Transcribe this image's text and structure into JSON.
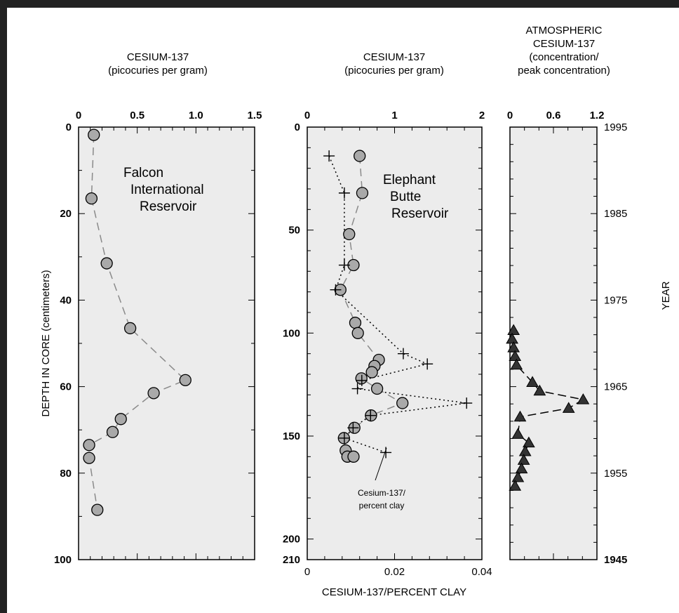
{
  "chart_data": [
    {
      "type": "scatter",
      "title": "CESIUM-137",
      "subtitle": "(picocuries per gram)",
      "ylabel": "DEPTH IN CORE (centimeters)",
      "xlim": [
        0,
        1.5
      ],
      "ylim": [
        0,
        100
      ],
      "x_ticks": [
        "0",
        "0.5",
        "1.0",
        "1.5"
      ],
      "y_ticks": [
        "0",
        "20",
        "40",
        "60",
        "80",
        "100"
      ],
      "annotation": [
        "Falcon",
        "International",
        "Reservoir"
      ],
      "series": [
        {
          "x": [
            0.13,
            0.11,
            0.24,
            0.44,
            0.91,
            0.64,
            0.36,
            0.29,
            0.09,
            0.09,
            0.16
          ],
          "y": [
            1.8,
            16.5,
            31.5,
            46.5,
            58.5,
            61.5,
            67.5,
            70.5,
            73.5,
            76.5,
            88.5
          ]
        }
      ]
    },
    {
      "type": "scatter",
      "title": "CESIUM-137",
      "subtitle": "(picocuries per gram)",
      "xlabel": "CESIUM-137/PERCENT CLAY",
      "xlim_top": [
        0,
        2
      ],
      "xlim_bottom": [
        0,
        0.04
      ],
      "ylim": [
        0,
        210
      ],
      "x_ticks_top": [
        "0",
        "1",
        "2"
      ],
      "x_ticks_bottom": [
        "0",
        "0.02",
        "0.04"
      ],
      "y_ticks": [
        "0",
        "50",
        "100",
        "150",
        "200",
        "210"
      ],
      "annotation": [
        "Elephant",
        "Butte",
        "Reservoir"
      ],
      "callout": [
        "Cesium-137/",
        "percent clay"
      ],
      "series": [
        {
          "x": [
            0.6,
            0.63,
            0.48,
            0.53,
            0.38,
            0.55,
            0.58,
            0.82,
            0.77,
            0.74,
            0.62,
            0.8,
            1.09,
            0.73,
            0.54,
            0.42,
            0.44,
            0.46,
            0.53
          ],
          "y": [
            14,
            32,
            52,
            67,
            79,
            95,
            100,
            113,
            116,
            119,
            122,
            127,
            134,
            140,
            146,
            151,
            157,
            160,
            160
          ]
        },
        {
          "x": [
            0.005,
            0.0085,
            0.0085,
            0.0065,
            0.022,
            0.0275,
            0.0125,
            0.0115,
            0.0365,
            0.0145,
            0.0105,
            0.0085,
            0.018
          ],
          "y": [
            14,
            32,
            67,
            79,
            110,
            115,
            123,
            127,
            134,
            140,
            146,
            151,
            158
          ]
        }
      ]
    },
    {
      "type": "scatter",
      "title": [
        "ATMOSPHERIC",
        "CESIUM-137",
        "(concentration/",
        "peak concentration)"
      ],
      "ylabel": "YEAR",
      "xlim": [
        0,
        1.2
      ],
      "ylim": [
        1945,
        1995
      ],
      "x_ticks": [
        "0",
        "0.6",
        "1.2"
      ],
      "y_ticks": [
        "1995",
        "1985",
        "1975",
        "1965",
        "1955",
        "1945"
      ],
      "series": [
        {
          "x": [
            0.05,
            0.03,
            0.05,
            0.07,
            0.09,
            0.31,
            0.41,
            1.01,
            0.81,
            0.14,
            0.11,
            0.26,
            0.21,
            0.19,
            0.16,
            0.11,
            0.07
          ],
          "y": [
            1971.5,
            1970.5,
            1969.5,
            1968.5,
            1967.5,
            1965.5,
            1964.5,
            1963.5,
            1962.5,
            1961.5,
            1959.5,
            1958.5,
            1957.5,
            1956.5,
            1955.5,
            1954.5,
            1953.5
          ]
        }
      ]
    }
  ]
}
